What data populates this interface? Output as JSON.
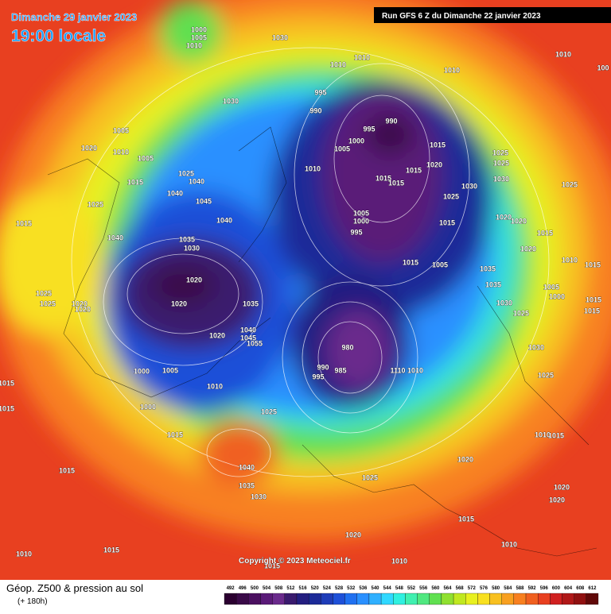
{
  "header": {
    "date": "Dimanche 29 janvier 2023",
    "time": "19:00 locale",
    "run": "Run GFS 6 Z du Dimanche 22 janvier 2023"
  },
  "copyright": "Copyright © 2023 Meteociel.fr",
  "legend": {
    "title": "Géop. Z500 & pression au sol",
    "subtitle": "(+ 180h)",
    "scale": [
      492,
      496,
      500,
      504,
      508,
      512,
      516,
      520,
      524,
      528,
      532,
      536,
      540,
      544,
      548,
      552,
      556,
      560,
      564,
      568,
      572,
      576,
      580,
      584,
      588,
      592,
      596,
      600,
      604,
      608,
      612
    ],
    "colors": [
      "#2b0030",
      "#3a0a48",
      "#4b1060",
      "#5a1a78",
      "#6a2a8c",
      "#3a1a6e",
      "#241e80",
      "#1c2a98",
      "#1e3cb8",
      "#1e50d8",
      "#2070f0",
      "#2a90ff",
      "#30b0ff",
      "#30d8ff",
      "#30f0e0",
      "#40f0b0",
      "#50e880",
      "#60e050",
      "#90e030",
      "#c0e820",
      "#e8f020",
      "#f8e020",
      "#f8c020",
      "#f8a020",
      "#f88020",
      "#f06020",
      "#e84020",
      "#d02020",
      "#b01818",
      "#901010",
      "#600808"
    ]
  },
  "isobar_labels": [
    1000,
    1005,
    1010,
    1030,
    1030,
    1010,
    1010,
    1010,
    1010,
    100,
    995,
    990,
    990,
    995,
    1005,
    1000,
    1010,
    1015,
    1015,
    1015,
    1020,
    1015,
    1025,
    1025,
    1030,
    1030,
    1025,
    1025,
    1020,
    1020,
    1015,
    1015,
    1020,
    1010,
    1015,
    1005,
    1000,
    995,
    1015,
    1005,
    1035,
    1035,
    1005,
    1000,
    1015,
    1015,
    1030,
    1025,
    1030,
    1025,
    1005,
    1010,
    1005,
    1020,
    1015,
    1025,
    1040,
    1040,
    1045,
    1025,
    1015,
    1040,
    1035,
    1030,
    1040,
    1020,
    1020,
    1025,
    1025,
    1020,
    1020,
    1035,
    1020,
    1040,
    1045,
    1055,
    980,
    990,
    985,
    995,
    1110,
    1010,
    1000,
    1005,
    1010,
    1015,
    1015,
    1000,
    1025,
    1015,
    1010,
    1015,
    1020,
    1040,
    1035,
    1030,
    1025,
    1015,
    1020,
    1020,
    1015,
    1020,
    1010,
    1015,
    1010,
    1015,
    1010
  ]
}
